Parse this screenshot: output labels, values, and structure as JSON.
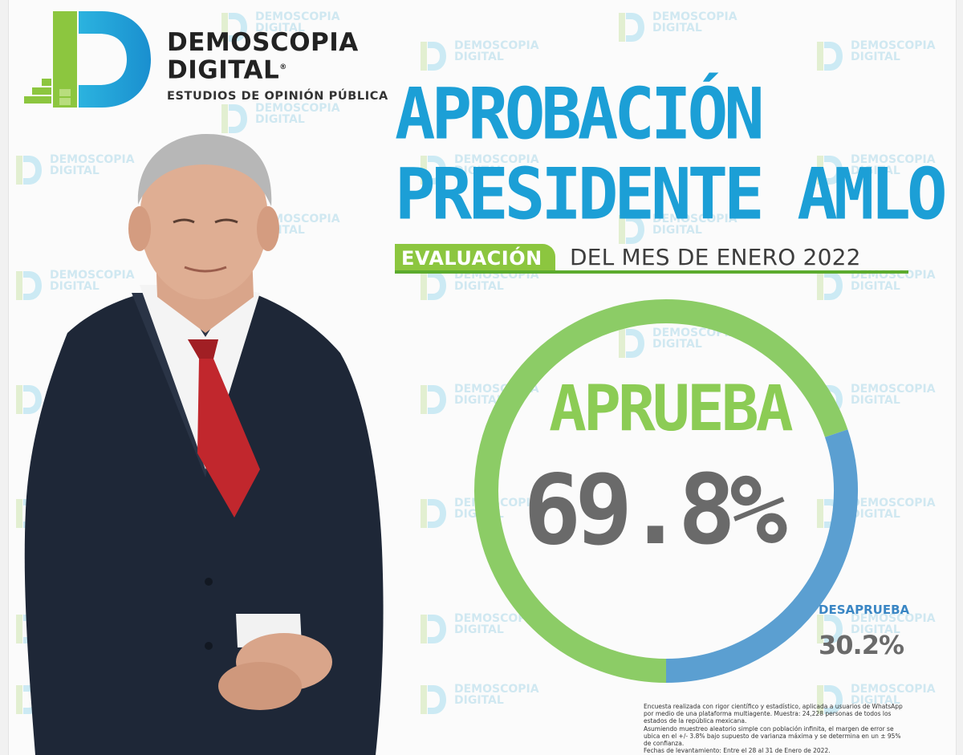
{
  "brand": {
    "name_line1": "DEMOSCOPIA",
    "name_line2": "DIGITAL",
    "registered": "®",
    "tagline": "ESTUDIOS DE OPINIÓN PÚBLICA",
    "colors": {
      "green": "#8cc63f",
      "blue": "#1c9fd6"
    }
  },
  "watermark": {
    "line1": "DEMOSCOPIA",
    "line2": "DIGITAL"
  },
  "title": {
    "line1": "APROBACIÓN",
    "line2": "PRESIDENTE AMLO"
  },
  "subtitle": {
    "tag": "EVALUACIÓN",
    "rest": "DEL MES DE ENERO 2022"
  },
  "chart_data": {
    "type": "pie",
    "style": "donut",
    "slices": [
      {
        "label": "APRUEBA",
        "value": 69.8,
        "display": "69.8%",
        "color": "#8ccc66"
      },
      {
        "label": "DESAPRUEBA",
        "value": 30.2,
        "display": "30.2%",
        "color": "#5b9fd1"
      }
    ]
  },
  "note": {
    "lines": [
      "Encuesta realizada con rigor científico y estadístico, aplicada a usuarios de WhatsApp por medio de una plataforma multiagente. Muestra: 24,228 personas de todos los estados de la república mexicana.",
      "Asumiendo muestreo aleatorio simple con población infinita, el margen de error se ubica en el +/- 3.8% bajo supuesto de varianza máxima y se determina en un ± 95% de confianza.",
      "Fechas de levantamiento: Entre el 28 al 31 de Enero de 2022."
    ]
  },
  "photo": {
    "icon": "president-portrait"
  }
}
